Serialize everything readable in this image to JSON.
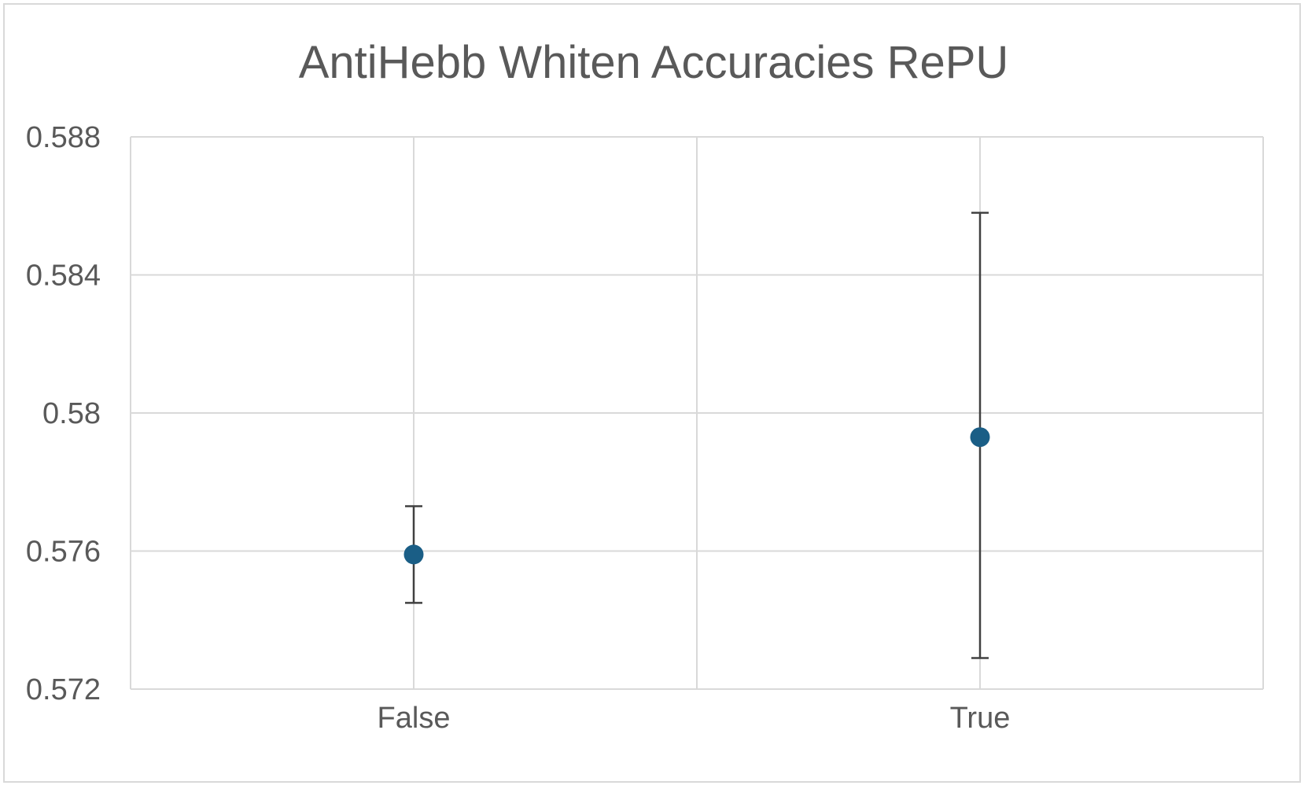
{
  "chart_data": {
    "type": "scatter",
    "title": "AntiHebb Whiten Accuracies RePU",
    "xlabel": "",
    "ylabel": "",
    "categories": [
      "False",
      "True"
    ],
    "series": [
      {
        "values": [
          0.5759,
          0.5793
        ],
        "error_low": [
          0.5745,
          0.5729
        ],
        "error_high": [
          0.5773,
          0.5858
        ],
        "color": "#1a5e86"
      }
    ],
    "ylim": [
      0.572,
      0.588
    ],
    "yticks": [
      "0.572",
      "0.576",
      "0.58",
      "0.584",
      "0.588"
    ],
    "yticks_values": [
      0.572,
      0.576,
      0.58,
      0.584,
      0.588
    ],
    "grid": true,
    "legend": "none"
  },
  "colors": {
    "marker": "#1a5e86",
    "error_bar": "#404040",
    "grid": "#d9d9d9",
    "text": "#595959"
  }
}
